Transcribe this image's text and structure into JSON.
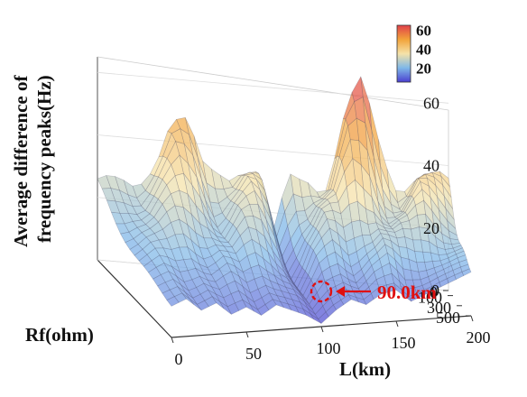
{
  "chart_data": {
    "type": "surface",
    "zlabel": [
      "Average difference of",
      "frequency peaks(Hz)"
    ],
    "xlabel": "L(km)",
    "ylabel": "Rf(ohm)",
    "z_ticks": [
      "0",
      "20",
      "40",
      "60"
    ],
    "x_ticks": [
      "0",
      "50",
      "100",
      "150",
      "200"
    ],
    "y_ticks": [
      "0",
      "100",
      "300",
      "500"
    ],
    "zlim": [
      0,
      65
    ],
    "xlim": [
      0,
      200
    ],
    "ylim": [
      0,
      500
    ],
    "colorbar": {
      "ticks": [
        "20",
        "40",
        "60"
      ],
      "colormap": [
        "#4a3fd0",
        "#7fb8e8",
        "#f5e2a8",
        "#f2a33a",
        "#e0404a"
      ]
    },
    "annotation": {
      "text": "90.0km",
      "x": 90,
      "y": 500,
      "z": 0
    },
    "profile_L_km": [
      0,
      10,
      20,
      30,
      40,
      50,
      60,
      70,
      80,
      90,
      100,
      110,
      120,
      130,
      140,
      150,
      160,
      170,
      180,
      190,
      200
    ],
    "profile_peak_Hz": [
      26,
      30,
      36,
      42,
      50,
      48,
      40,
      46,
      48,
      38,
      14,
      38,
      46,
      44,
      60,
      66,
      54,
      46,
      50,
      42,
      36
    ],
    "profile_min_Hz": [
      10,
      12,
      8,
      10,
      6,
      8,
      5,
      8,
      6,
      4,
      1,
      5,
      8,
      6,
      9,
      10,
      6,
      8,
      10,
      12,
      14
    ]
  }
}
